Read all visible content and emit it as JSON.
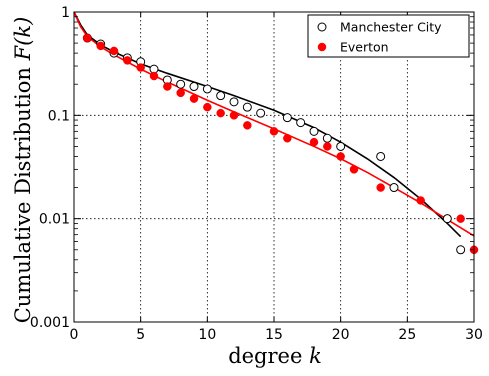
{
  "chart_data": {
    "type": "scatter",
    "xlabel": "degree k",
    "ylabel": "Cumulative Distribution F(k)",
    "xlim": [
      0,
      30
    ],
    "ylim": [
      0.001,
      1
    ],
    "yscale": "log",
    "grid": true,
    "legend_position": "top-right",
    "x_ticks": [
      "0",
      "5",
      "10",
      "15",
      "20",
      "25",
      "30"
    ],
    "y_ticks": [
      "0.001",
      "0.01",
      "0.1",
      "1"
    ],
    "series": [
      {
        "name": "Manchester City",
        "marker": "open-circle",
        "color": "#000000",
        "points": [
          [
            1,
            0.56
          ],
          [
            2,
            0.49
          ],
          [
            3,
            0.4
          ],
          [
            4,
            0.36
          ],
          [
            5,
            0.33
          ],
          [
            6,
            0.28
          ],
          [
            7,
            0.22
          ],
          [
            8,
            0.2
          ],
          [
            9,
            0.19
          ],
          [
            10,
            0.18
          ],
          [
            11,
            0.155
          ],
          [
            12,
            0.135
          ],
          [
            13,
            0.12
          ],
          [
            14,
            0.105
          ],
          [
            16,
            0.095
          ],
          [
            17,
            0.085
          ],
          [
            18,
            0.07
          ],
          [
            19,
            0.06
          ],
          [
            20,
            0.05
          ],
          [
            23,
            0.04
          ],
          [
            24,
            0.02
          ],
          [
            28,
            0.01
          ],
          [
            29,
            0.005
          ]
        ],
        "fit": [
          [
            0,
            1.0
          ],
          [
            0.5,
            0.75
          ],
          [
            1,
            0.6
          ],
          [
            2,
            0.48
          ],
          [
            3,
            0.41
          ],
          [
            5,
            0.315
          ],
          [
            7,
            0.255
          ],
          [
            10,
            0.19
          ],
          [
            12,
            0.155
          ],
          [
            15,
            0.112
          ],
          [
            18,
            0.076
          ],
          [
            20,
            0.055
          ],
          [
            22,
            0.038
          ],
          [
            24,
            0.025
          ],
          [
            26,
            0.0155
          ],
          [
            28,
            0.009
          ],
          [
            29,
            0.0067
          ]
        ]
      },
      {
        "name": "Everton",
        "marker": "filled-circle",
        "color": "#ff0000",
        "points": [
          [
            1,
            0.56
          ],
          [
            2,
            0.47
          ],
          [
            3,
            0.42
          ],
          [
            4,
            0.34
          ],
          [
            5,
            0.29
          ],
          [
            6,
            0.24
          ],
          [
            7,
            0.19
          ],
          [
            8,
            0.165
          ],
          [
            9,
            0.145
          ],
          [
            10,
            0.12
          ],
          [
            11,
            0.105
          ],
          [
            12,
            0.1
          ],
          [
            13,
            0.08
          ],
          [
            15,
            0.07
          ],
          [
            16,
            0.06
          ],
          [
            18,
            0.055
          ],
          [
            19,
            0.05
          ],
          [
            20,
            0.04
          ],
          [
            21,
            0.03
          ],
          [
            23,
            0.02
          ],
          [
            26,
            0.015
          ],
          [
            29,
            0.01
          ],
          [
            30,
            0.005
          ]
        ],
        "fit": [
          [
            0,
            1.0
          ],
          [
            0.5,
            0.72
          ],
          [
            1,
            0.58
          ],
          [
            2,
            0.46
          ],
          [
            3,
            0.385
          ],
          [
            5,
            0.28
          ],
          [
            7,
            0.21
          ],
          [
            10,
            0.14
          ],
          [
            12,
            0.108
          ],
          [
            15,
            0.074
          ],
          [
            18,
            0.05
          ],
          [
            20,
            0.038
          ],
          [
            22,
            0.028
          ],
          [
            24,
            0.02
          ],
          [
            26,
            0.0142
          ],
          [
            28,
            0.0098
          ],
          [
            30,
            0.0068
          ]
        ]
      }
    ]
  }
}
